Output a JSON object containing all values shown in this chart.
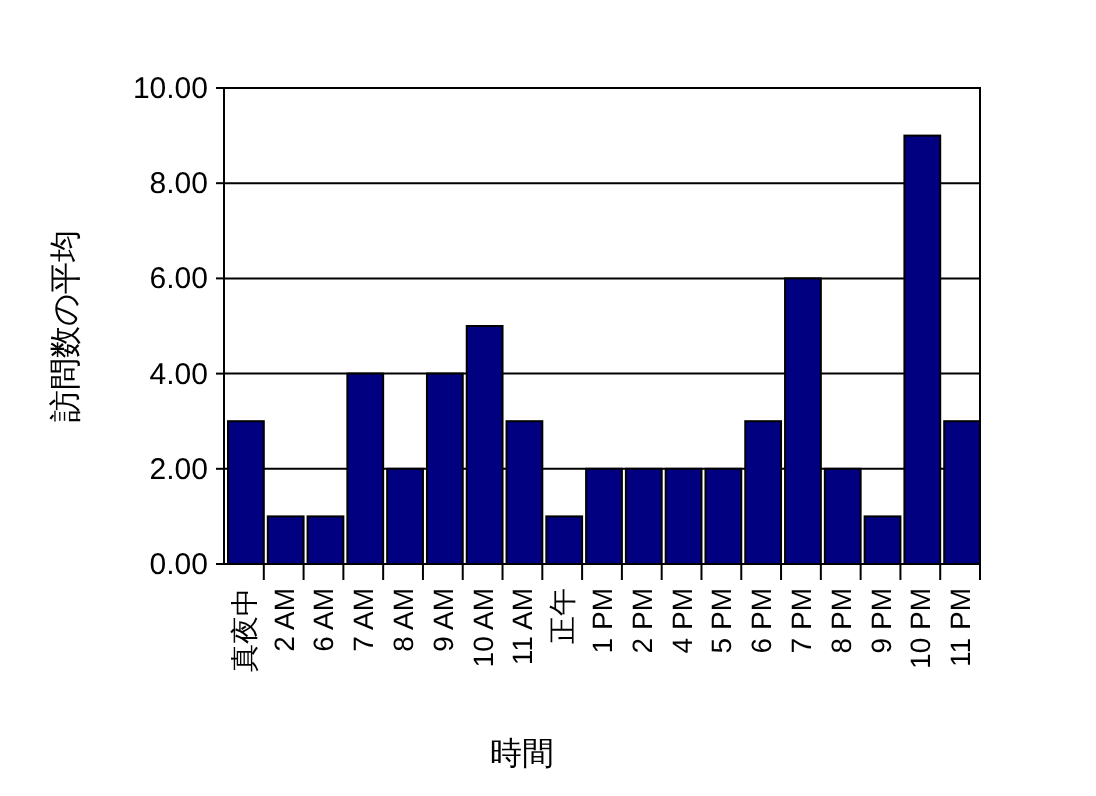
{
  "chart_data": {
    "type": "bar",
    "xlabel": "時間",
    "ylabel": "訪問数の平均",
    "categories": [
      "真夜中",
      "2 AM",
      "6 AM",
      "7 AM",
      "8 AM",
      "9 AM",
      "10 AM",
      "11 AM",
      "正午",
      "1 PM",
      "2 PM",
      "4 PM",
      "5 PM",
      "6 PM",
      "7 PM",
      "8 PM",
      "9 PM",
      "10 PM",
      "11 PM"
    ],
    "values": [
      3,
      1,
      1,
      4,
      2,
      4,
      5,
      3,
      1,
      2,
      2,
      2,
      2,
      3,
      6,
      2,
      1,
      9,
      3
    ],
    "color": "#000080",
    "ylim": [
      0,
      10
    ],
    "yticks": [
      {
        "value": 0,
        "label": "0.00"
      },
      {
        "value": 2,
        "label": "2.00"
      },
      {
        "value": 4,
        "label": "4.00"
      },
      {
        "value": 6,
        "label": "6.00"
      },
      {
        "value": 8,
        "label": "8.00"
      },
      {
        "value": 10,
        "label": "10.00"
      }
    ],
    "grid": "y"
  }
}
